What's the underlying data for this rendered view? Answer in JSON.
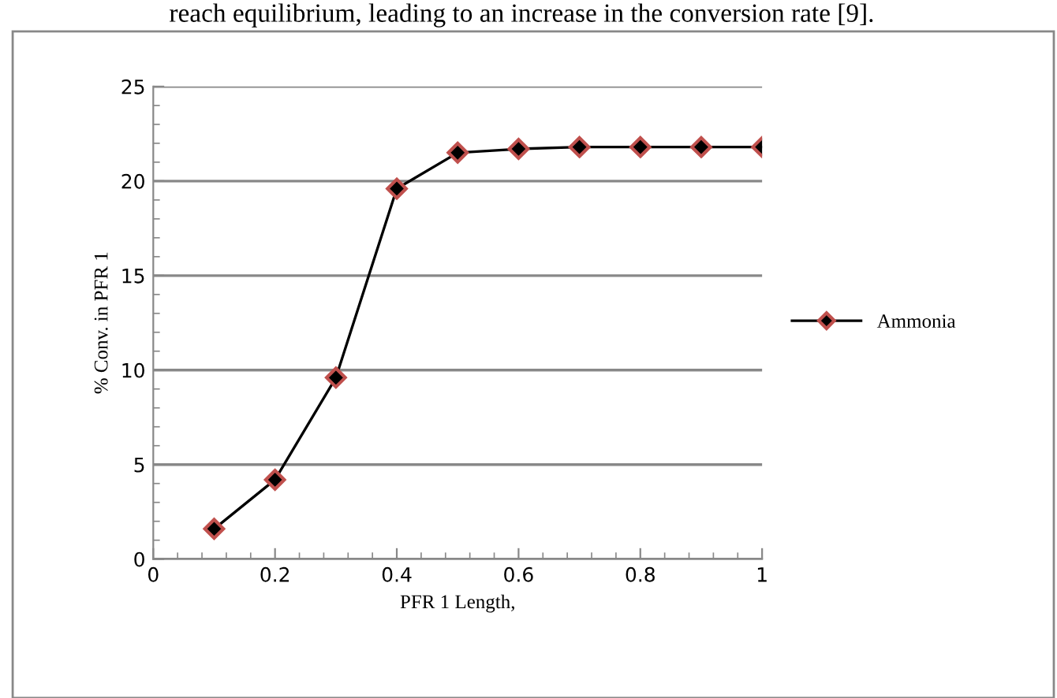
{
  "chart_data": {
    "type": "line",
    "xlabel": "PFR 1 Length,",
    "ylabel": "% Conv. in PFR 1",
    "annotations": [
      "reach equilibrium, leading to an increase in the conversion rate [9]."
    ],
    "x": [
      0.1,
      0.2,
      0.3,
      0.4,
      0.5,
      0.6,
      0.7,
      0.8,
      0.9,
      1.0
    ],
    "series": [
      {
        "name": "Ammonia",
        "color": "#000000",
        "values": [
          1.6,
          4.2,
          9.6,
          19.6,
          21.5,
          21.7,
          21.8,
          21.8,
          21.8,
          21.8
        ]
      }
    ],
    "xlim": [
      0,
      1
    ],
    "xticks": [
      0,
      0.2,
      0.4,
      0.6,
      0.8,
      1
    ],
    "ylim": [
      0,
      25
    ],
    "yticks": [
      0,
      5,
      10,
      15,
      20,
      25
    ],
    "grid": "y",
    "legend": "right",
    "marker": "diamond",
    "line_style": "solid"
  }
}
